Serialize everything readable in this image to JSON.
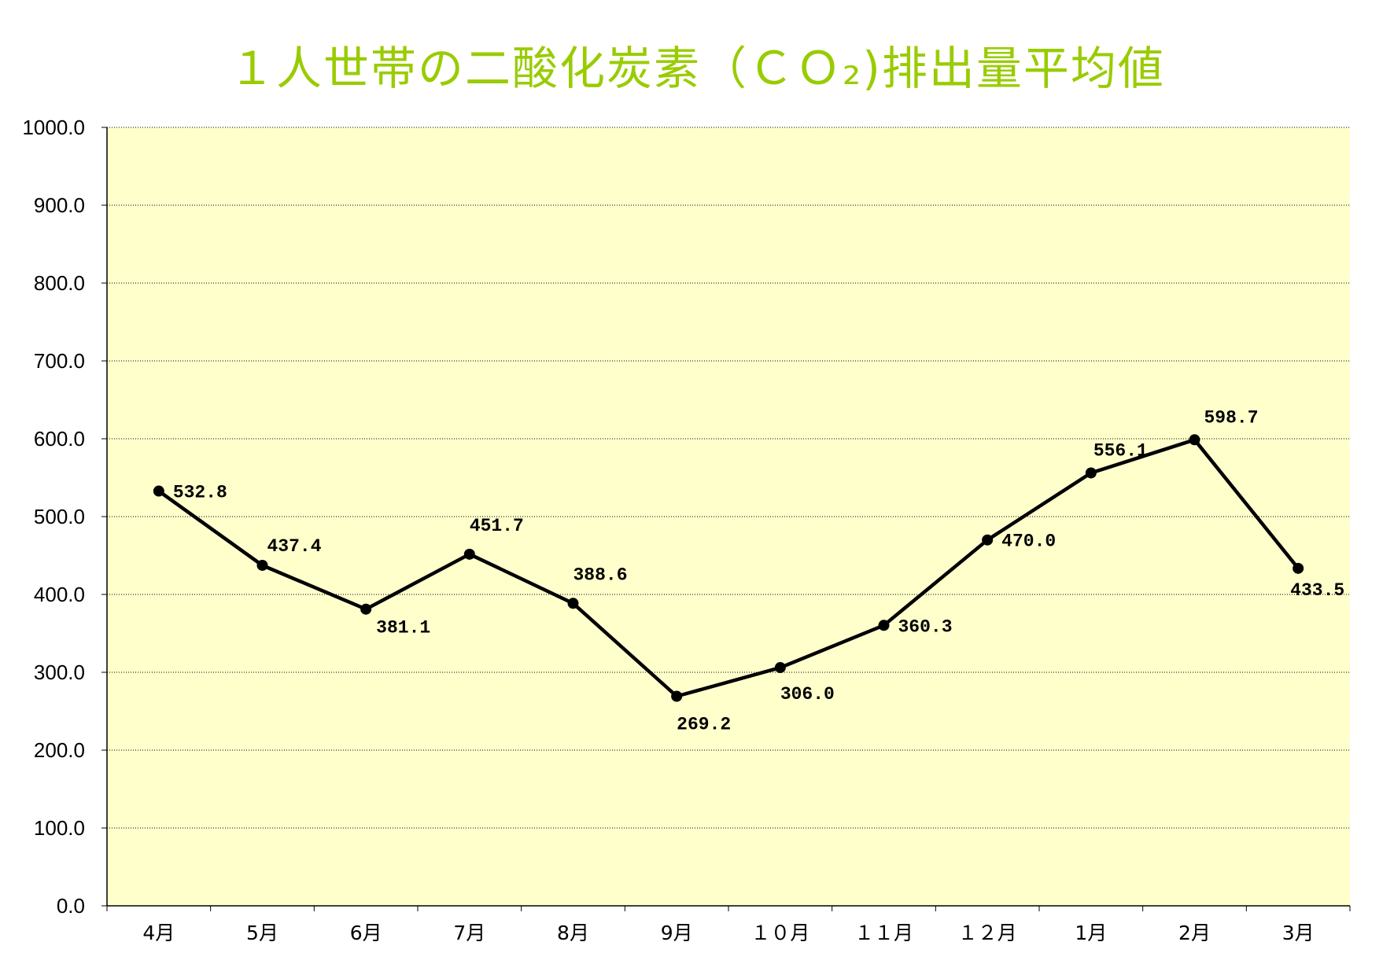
{
  "chart_data": {
    "type": "line",
    "title": "１人世帯の二酸化炭素（ＣＯ₂)排出量平均値",
    "xlabel": "",
    "ylabel": "",
    "categories": [
      "4月",
      "5月",
      "6月",
      "7月",
      "8月",
      "9月",
      "１０月",
      "１１月",
      "１２月",
      "1月",
      "2月",
      "3月"
    ],
    "series": [
      {
        "values": [
          532.8,
          437.4,
          381.1,
          451.7,
          388.6,
          269.2,
          306.0,
          360.3,
          470.0,
          556.1,
          598.7,
          433.5
        ],
        "labels": [
          "532.8",
          "437.4",
          "381.1",
          "451.7",
          "388.6",
          "269.2",
          "306.0",
          "360.3",
          "470.0",
          "556.1",
          "598.7",
          "433.5"
        ]
      }
    ],
    "ylim": [
      0,
      1000
    ],
    "yticks": [
      "0.0",
      "100.0",
      "200.0",
      "300.0",
      "400.0",
      "500.0",
      "600.0",
      "700.0",
      "800.0",
      "900.0",
      "1000.0"
    ],
    "grid": true,
    "legend": "none",
    "colors": {
      "plot_background": "#ffffcc",
      "title": "#99cc00",
      "line": "#000000",
      "gridline": "#000000"
    }
  }
}
